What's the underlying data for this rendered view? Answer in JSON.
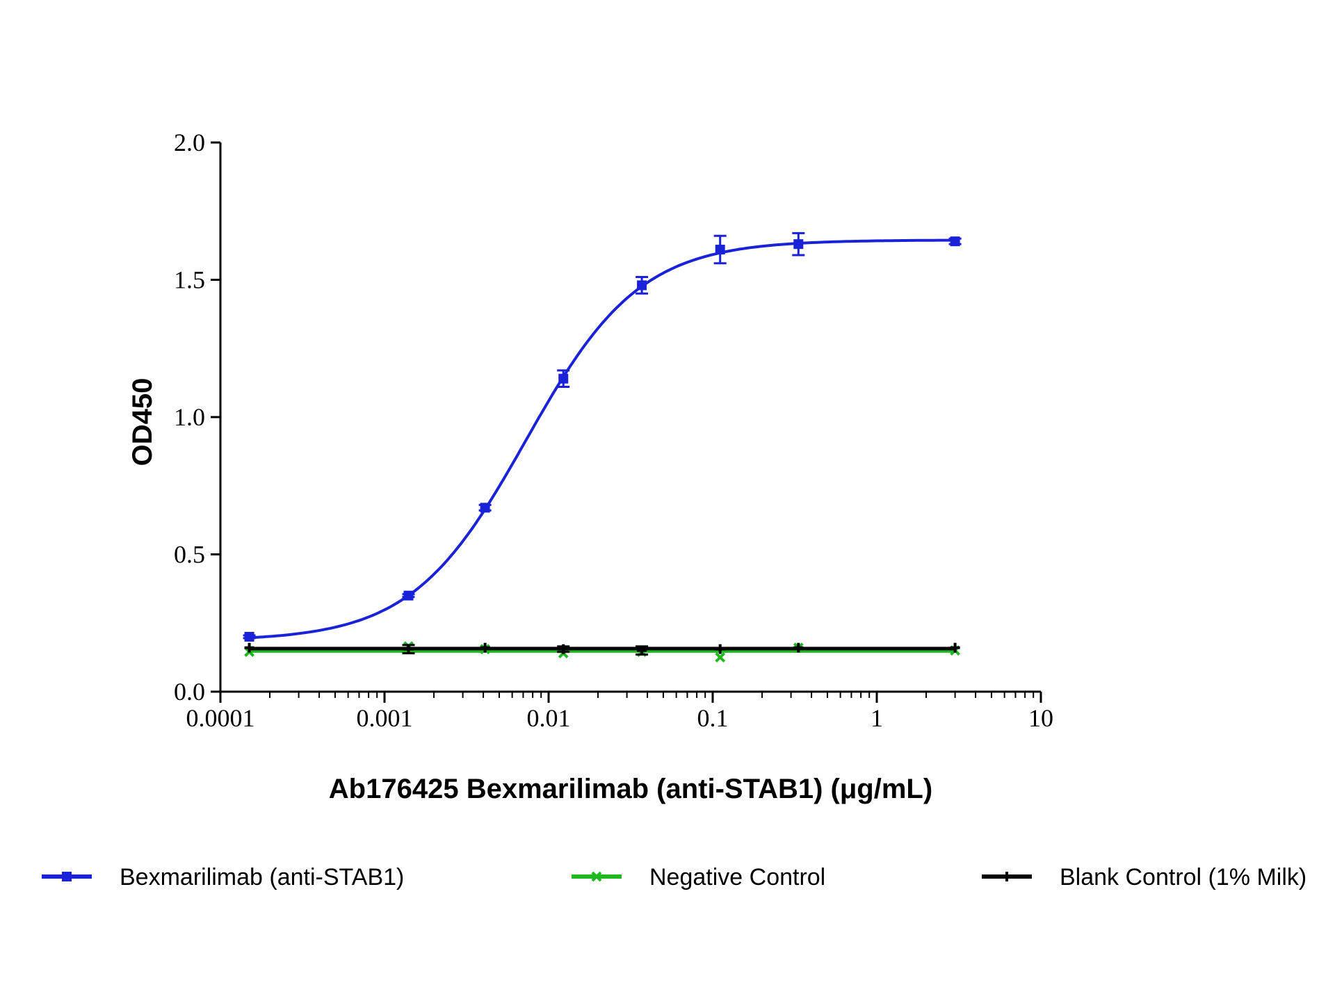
{
  "chart_data": {
    "type": "line",
    "title": "",
    "xlabel": "Ab176425 Bexmarilimab (anti-STAB1) (μg/mL)",
    "ylabel": "OD450",
    "x_scale": "log",
    "xlim": [
      0.0001,
      10
    ],
    "ylim": [
      0.0,
      2.0
    ],
    "x_ticks": [
      0.0001,
      0.001,
      0.01,
      0.1,
      1,
      10
    ],
    "x_tick_labels": [
      "0.0001",
      "0.001",
      "0.01",
      "0.1",
      "1",
      "10"
    ],
    "y_ticks": [
      0.0,
      0.5,
      1.0,
      1.5,
      2.0
    ],
    "y_tick_labels": [
      "0.0",
      "0.5",
      "1.0",
      "1.5",
      "2.0"
    ],
    "grid": false,
    "legend_position": "bottom",
    "x": [
      0.00015,
      0.0014,
      0.0041,
      0.0123,
      0.037,
      0.111,
      0.333,
      3.0
    ],
    "series": [
      {
        "name": "Bexmarilimab (anti-STAB1)",
        "color": "#1a22d8",
        "marker": "square",
        "fit": "sigmoidal",
        "values": [
          0.2,
          0.35,
          0.67,
          1.14,
          1.48,
          1.61,
          1.63,
          1.64
        ],
        "errors": [
          0.005,
          0.005,
          0.01,
          0.03,
          0.03,
          0.05,
          0.04,
          0.01
        ]
      },
      {
        "name": "Negative Control",
        "color": "#1fb81f",
        "marker": "x",
        "fit": "flat",
        "values": [
          0.145,
          0.165,
          0.155,
          0.14,
          0.145,
          0.125,
          0.16,
          0.15
        ],
        "errors": [
          0.0,
          0.0,
          0.0,
          0.0,
          0.0,
          0.0,
          0.0,
          0.0
        ]
      },
      {
        "name": "Blank Control (1% Milk)",
        "color": "#000000",
        "marker": "plus",
        "fit": "flat",
        "values": [
          0.16,
          0.155,
          0.16,
          0.155,
          0.15,
          0.155,
          0.16,
          0.16
        ],
        "errors": [
          0.0,
          0.015,
          0.0,
          0.01,
          0.015,
          0.0,
          0.0,
          0.0
        ]
      }
    ]
  }
}
